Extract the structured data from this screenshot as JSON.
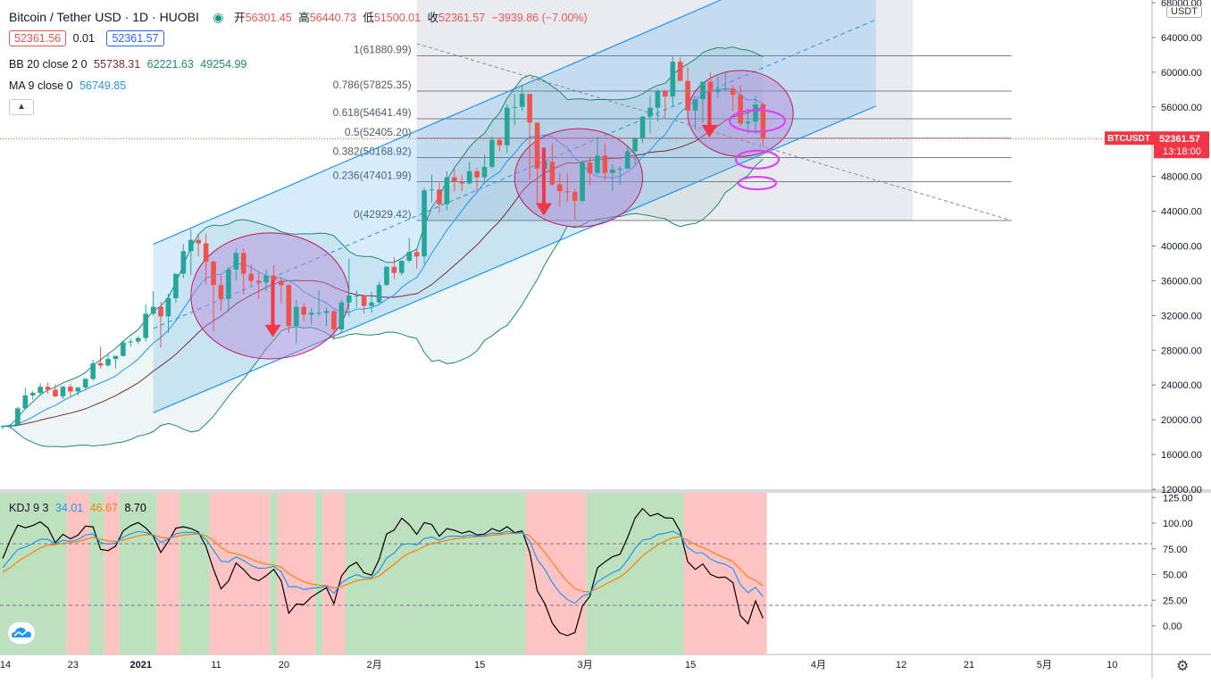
{
  "header": {
    "symbol": "Bitcoin / Tether USD · 1D · HUOBI",
    "open_label": "开",
    "open": "56301.45",
    "high_label": "高",
    "high": "56440.73",
    "low_label": "低",
    "low": "51500.01",
    "close_label": "收",
    "close": "52361.57",
    "change": "−3939.86 (−7.00%)",
    "bid": "52361.56",
    "spread": "0.01",
    "ask": "52361.57",
    "bb_label": "BB 20 close 2 0",
    "bb_basis": "55738.31",
    "bb_upper": "62221.63",
    "bb_lower": "49254.99",
    "ma_label": "MA 9 close 0",
    "ma_value": "56749.85",
    "collapse_icon": "chevron-up-icon"
  },
  "price_axis": {
    "currency": "USDT",
    "labels": [
      "68000.00",
      "64000.00",
      "60000.00",
      "56000.00",
      "52000.00",
      "48000.00",
      "44000.00",
      "40000.00",
      "36000.00",
      "32000.00",
      "28000.00",
      "24000.00",
      "20000.00",
      "16000.00",
      "12000.00"
    ],
    "last_price_label": "52361.57",
    "countdown": "13:18:00",
    "symbol_tag": "BTCUSDT"
  },
  "kdj_axis": {
    "labels": [
      "125.00",
      "100.00",
      "75.00",
      "50.00",
      "25.00",
      "0.00"
    ]
  },
  "time_axis": {
    "labels": [
      "14",
      "23",
      "2021",
      "11",
      "20",
      "2月",
      "15",
      "3月",
      "15",
      "4月",
      "12",
      "21",
      "5月",
      "10"
    ]
  },
  "fib": {
    "labels": [
      "1(61880.99)",
      "0.786(57825.35)",
      "0.618(54641.49)",
      "0.5(52405.20)",
      "0.382(50168.92)",
      "0.236(47401.99)",
      "0(42929.42)"
    ],
    "levels": [
      61880.99,
      57825.35,
      54641.49,
      52405.2,
      50168.92,
      47401.99,
      42929.42
    ]
  },
  "kdj_legend": {
    "label": "KDJ 9 3",
    "k": "34.01",
    "d": "46.67",
    "j": "8.70"
  },
  "colors": {
    "up": "#26a69a",
    "down": "#ef5350",
    "bb_band": "#1f8a70",
    "bb_basis": "#7b2b3a",
    "ma": "#2196f3",
    "k": "#2196f3",
    "d": "#ff7f0e",
    "j": "#000000",
    "channel": "#2196f3",
    "fib_bg": "#e0e3eb",
    "ellipse_fill": "#b48ad6",
    "ring": "#e040fb",
    "arrow": "#f23645"
  },
  "chart_data": {
    "type": "candlestick",
    "interval": "1D",
    "x_axis_start": "2020-12-14",
    "ylim": [
      12000,
      68000
    ],
    "candles": [
      {
        "t": "2020-12-14",
        "o": 19150,
        "h": 19400,
        "l": 18900,
        "c": 19250
      },
      {
        "t": "2020-12-15",
        "o": 19250,
        "h": 19500,
        "l": 19000,
        "c": 19400
      },
      {
        "t": "2020-12-16",
        "o": 19400,
        "h": 21500,
        "l": 19300,
        "c": 21300
      },
      {
        "t": "2020-12-17",
        "o": 21300,
        "h": 23700,
        "l": 21200,
        "c": 22800
      },
      {
        "t": "2020-12-18",
        "o": 22800,
        "h": 23300,
        "l": 22300,
        "c": 23100
      },
      {
        "t": "2020-12-19",
        "o": 23100,
        "h": 24200,
        "l": 22800,
        "c": 23800
      },
      {
        "t": "2020-12-20",
        "o": 23800,
        "h": 24300,
        "l": 23000,
        "c": 23450
      },
      {
        "t": "2020-12-21",
        "o": 23450,
        "h": 24100,
        "l": 22600,
        "c": 22700
      },
      {
        "t": "2020-12-22",
        "o": 22700,
        "h": 23900,
        "l": 22400,
        "c": 23800
      },
      {
        "t": "2020-12-23",
        "o": 23800,
        "h": 24100,
        "l": 22600,
        "c": 23250
      },
      {
        "t": "2020-12-24",
        "o": 23250,
        "h": 23800,
        "l": 22800,
        "c": 23700
      },
      {
        "t": "2020-12-25",
        "o": 23700,
        "h": 24800,
        "l": 23400,
        "c": 24700
      },
      {
        "t": "2020-12-26",
        "o": 24700,
        "h": 26900,
        "l": 24500,
        "c": 26500
      },
      {
        "t": "2020-12-27",
        "o": 26500,
        "h": 28400,
        "l": 25900,
        "c": 26250
      },
      {
        "t": "2020-12-28",
        "o": 26250,
        "h": 27500,
        "l": 26100,
        "c": 27000
      },
      {
        "t": "2020-12-29",
        "o": 27000,
        "h": 27300,
        "l": 25900,
        "c": 27350
      },
      {
        "t": "2020-12-30",
        "o": 27350,
        "h": 29000,
        "l": 27300,
        "c": 28900
      },
      {
        "t": "2020-12-31",
        "o": 28900,
        "h": 29300,
        "l": 28400,
        "c": 29000
      },
      {
        "t": "2021-01-01",
        "o": 29000,
        "h": 29600,
        "l": 28700,
        "c": 29400
      },
      {
        "t": "2021-01-02",
        "o": 29400,
        "h": 33300,
        "l": 29000,
        "c": 32200
      },
      {
        "t": "2021-01-03",
        "o": 32200,
        "h": 34800,
        "l": 32000,
        "c": 33000
      },
      {
        "t": "2021-01-04",
        "o": 33000,
        "h": 33600,
        "l": 28300,
        "c": 31900
      },
      {
        "t": "2021-01-05",
        "o": 31900,
        "h": 34500,
        "l": 30000,
        "c": 34000
      },
      {
        "t": "2021-01-06",
        "o": 34000,
        "h": 36800,
        "l": 33500,
        "c": 36800
      },
      {
        "t": "2021-01-07",
        "o": 36800,
        "h": 40200,
        "l": 36300,
        "c": 39400
      },
      {
        "t": "2021-01-08",
        "o": 39400,
        "h": 41900,
        "l": 36600,
        "c": 40700
      },
      {
        "t": "2021-01-09",
        "o": 40700,
        "h": 41300,
        "l": 38800,
        "c": 40300
      },
      {
        "t": "2021-01-10",
        "o": 40300,
        "h": 41400,
        "l": 35600,
        "c": 38200
      },
      {
        "t": "2021-01-11",
        "o": 38200,
        "h": 38300,
        "l": 30200,
        "c": 35500
      },
      {
        "t": "2021-01-12",
        "o": 35500,
        "h": 36600,
        "l": 32500,
        "c": 33900
      },
      {
        "t": "2021-01-13",
        "o": 33900,
        "h": 37600,
        "l": 32400,
        "c": 37300
      },
      {
        "t": "2021-01-14",
        "o": 37300,
        "h": 39700,
        "l": 36000,
        "c": 39200
      },
      {
        "t": "2021-01-15",
        "o": 39200,
        "h": 39700,
        "l": 34400,
        "c": 36800
      },
      {
        "t": "2021-01-16",
        "o": 36800,
        "h": 37900,
        "l": 35400,
        "c": 36000
      },
      {
        "t": "2021-01-17",
        "o": 36000,
        "h": 36900,
        "l": 33900,
        "c": 35800
      },
      {
        "t": "2021-01-18",
        "o": 35800,
        "h": 37300,
        "l": 34800,
        "c": 36600
      },
      {
        "t": "2021-01-19",
        "o": 36600,
        "h": 37800,
        "l": 35800,
        "c": 36000
      },
      {
        "t": "2021-01-20",
        "o": 36000,
        "h": 36400,
        "l": 33400,
        "c": 35500
      },
      {
        "t": "2021-01-21",
        "o": 35500,
        "h": 35600,
        "l": 30000,
        "c": 30800
      },
      {
        "t": "2021-01-22",
        "o": 30800,
        "h": 33800,
        "l": 28800,
        "c": 33000
      },
      {
        "t": "2021-01-23",
        "o": 33000,
        "h": 33400,
        "l": 31400,
        "c": 32100
      },
      {
        "t": "2021-01-24",
        "o": 32100,
        "h": 32900,
        "l": 31000,
        "c": 32300
      },
      {
        "t": "2021-01-25",
        "o": 32300,
        "h": 34900,
        "l": 31900,
        "c": 32300
      },
      {
        "t": "2021-01-26",
        "o": 32300,
        "h": 32900,
        "l": 30800,
        "c": 32500
      },
      {
        "t": "2021-01-27",
        "o": 32500,
        "h": 32600,
        "l": 29200,
        "c": 30400
      },
      {
        "t": "2021-01-28",
        "o": 30400,
        "h": 33800,
        "l": 29900,
        "c": 33500
      },
      {
        "t": "2021-01-29",
        "o": 33500,
        "h": 38500,
        "l": 31900,
        "c": 34300
      },
      {
        "t": "2021-01-30",
        "o": 34300,
        "h": 34900,
        "l": 32900,
        "c": 34300
      },
      {
        "t": "2021-01-31",
        "o": 34300,
        "h": 34400,
        "l": 32200,
        "c": 33100
      },
      {
        "t": "2021-02-01",
        "o": 33100,
        "h": 34700,
        "l": 32300,
        "c": 33500
      },
      {
        "t": "2021-02-02",
        "o": 33500,
        "h": 35900,
        "l": 33400,
        "c": 35500
      },
      {
        "t": "2021-02-03",
        "o": 35500,
        "h": 37700,
        "l": 35400,
        "c": 37600
      },
      {
        "t": "2021-02-04",
        "o": 37600,
        "h": 38700,
        "l": 36200,
        "c": 36900
      },
      {
        "t": "2021-02-05",
        "o": 36900,
        "h": 38300,
        "l": 36600,
        "c": 38300
      },
      {
        "t": "2021-02-06",
        "o": 38300,
        "h": 40900,
        "l": 38100,
        "c": 39300
      },
      {
        "t": "2021-02-07",
        "o": 39300,
        "h": 39700,
        "l": 37400,
        "c": 38800
      },
      {
        "t": "2021-02-08",
        "o": 38800,
        "h": 46700,
        "l": 37900,
        "c": 46400
      },
      {
        "t": "2021-02-09",
        "o": 46400,
        "h": 48200,
        "l": 45000,
        "c": 46500
      },
      {
        "t": "2021-02-10",
        "o": 46500,
        "h": 47300,
        "l": 43800,
        "c": 44800
      },
      {
        "t": "2021-02-11",
        "o": 44800,
        "h": 48600,
        "l": 44100,
        "c": 47900
      },
      {
        "t": "2021-02-12",
        "o": 47900,
        "h": 48900,
        "l": 46300,
        "c": 47400
      },
      {
        "t": "2021-02-13",
        "o": 47400,
        "h": 48200,
        "l": 46300,
        "c": 47200
      },
      {
        "t": "2021-02-14",
        "o": 47200,
        "h": 49700,
        "l": 47100,
        "c": 48600
      },
      {
        "t": "2021-02-15",
        "o": 48600,
        "h": 49000,
        "l": 46300,
        "c": 47900
      },
      {
        "t": "2021-02-16",
        "o": 47900,
        "h": 50500,
        "l": 47100,
        "c": 49100
      },
      {
        "t": "2021-02-17",
        "o": 49100,
        "h": 52600,
        "l": 48900,
        "c": 52200
      },
      {
        "t": "2021-02-18",
        "o": 52200,
        "h": 52500,
        "l": 50900,
        "c": 51600
      },
      {
        "t": "2021-02-19",
        "o": 51600,
        "h": 56300,
        "l": 50700,
        "c": 55900
      },
      {
        "t": "2021-02-20",
        "o": 55900,
        "h": 57500,
        "l": 53900,
        "c": 56000
      },
      {
        "t": "2021-02-21",
        "o": 56000,
        "h": 58400,
        "l": 55500,
        "c": 57500
      },
      {
        "t": "2021-02-22",
        "o": 57500,
        "h": 57500,
        "l": 47600,
        "c": 54200
      },
      {
        "t": "2021-02-23",
        "o": 54200,
        "h": 54200,
        "l": 44900,
        "c": 48900
      },
      {
        "t": "2021-02-24",
        "o": 48900,
        "h": 51300,
        "l": 47100,
        "c": 49700
      },
      {
        "t": "2021-02-25",
        "o": 49700,
        "h": 51800,
        "l": 46900,
        "c": 47100
      },
      {
        "t": "2021-02-26",
        "o": 47100,
        "h": 48400,
        "l": 44500,
        "c": 46300
      },
      {
        "t": "2021-02-27",
        "o": 46300,
        "h": 48300,
        "l": 45100,
        "c": 46200
      },
      {
        "t": "2021-02-28",
        "o": 46200,
        "h": 46600,
        "l": 43000,
        "c": 45200
      },
      {
        "t": "2021-03-01",
        "o": 45200,
        "h": 49800,
        "l": 45000,
        "c": 49600
      },
      {
        "t": "2021-03-02",
        "o": 49600,
        "h": 50200,
        "l": 47000,
        "c": 48400
      },
      {
        "t": "2021-03-03",
        "o": 48400,
        "h": 52600,
        "l": 48100,
        "c": 50400
      },
      {
        "t": "2021-03-04",
        "o": 50400,
        "h": 51800,
        "l": 47600,
        "c": 48400
      },
      {
        "t": "2021-03-05",
        "o": 48400,
        "h": 49400,
        "l": 46300,
        "c": 48800
      },
      {
        "t": "2021-03-06",
        "o": 48800,
        "h": 49200,
        "l": 47100,
        "c": 48900
      },
      {
        "t": "2021-03-07",
        "o": 48900,
        "h": 51400,
        "l": 48900,
        "c": 50900
      },
      {
        "t": "2021-03-08",
        "o": 50900,
        "h": 52400,
        "l": 49300,
        "c": 52400
      },
      {
        "t": "2021-03-09",
        "o": 52400,
        "h": 54900,
        "l": 51800,
        "c": 54900
      },
      {
        "t": "2021-03-10",
        "o": 54900,
        "h": 57300,
        "l": 53000,
        "c": 55900
      },
      {
        "t": "2021-03-11",
        "o": 55900,
        "h": 58100,
        "l": 54300,
        "c": 57800
      },
      {
        "t": "2021-03-12",
        "o": 57800,
        "h": 58000,
        "l": 54900,
        "c": 57200
      },
      {
        "t": "2021-03-13",
        "o": 57200,
        "h": 61800,
        "l": 56100,
        "c": 61200
      },
      {
        "t": "2021-03-14",
        "o": 61200,
        "h": 61700,
        "l": 59000,
        "c": 59000
      },
      {
        "t": "2021-03-15",
        "o": 59000,
        "h": 60600,
        "l": 54600,
        "c": 55600
      },
      {
        "t": "2021-03-16",
        "o": 55600,
        "h": 56900,
        "l": 53400,
        "c": 56900
      },
      {
        "t": "2021-03-17",
        "o": 56900,
        "h": 58900,
        "l": 54200,
        "c": 58900
      },
      {
        "t": "2021-03-18",
        "o": 58900,
        "h": 60000,
        "l": 57100,
        "c": 57700
      },
      {
        "t": "2021-03-19",
        "o": 57700,
        "h": 59500,
        "l": 57000,
        "c": 58000
      },
      {
        "t": "2021-03-20",
        "o": 58000,
        "h": 59900,
        "l": 57800,
        "c": 58100
      },
      {
        "t": "2021-03-21",
        "o": 58100,
        "h": 58500,
        "l": 55500,
        "c": 57400
      },
      {
        "t": "2021-03-22",
        "o": 57400,
        "h": 58500,
        "l": 53800,
        "c": 54100
      },
      {
        "t": "2021-03-23",
        "o": 54100,
        "h": 55800,
        "l": 53000,
        "c": 54300
      },
      {
        "t": "2021-03-24",
        "o": 54300,
        "h": 57200,
        "l": 52900,
        "c": 56300
      },
      {
        "t": "2021-03-25",
        "o": 56301.45,
        "h": 56440.73,
        "l": 51500.01,
        "c": 52361.57
      }
    ],
    "indicators": {
      "bollinger": {
        "period": 20,
        "mult": 2,
        "basis": 55738.31,
        "upper": 62221.63,
        "lower": 49254.99
      },
      "ma": {
        "period": 9,
        "value": 56749.85
      },
      "kdj": {
        "params": "9 3",
        "k": 34.01,
        "d": 46.67,
        "j": 8.7
      }
    },
    "annotations": {
      "fib_retracement": {
        "from": "2021-02-07",
        "to": "2021-04-27",
        "high": 61880.99,
        "low": 42929.42
      },
      "trend_channel": {
        "start": {
          "t": "2021-01-03",
          "p": [
            20800,
            40200
          ]
        },
        "end": {
          "t": "2021-04-09",
          "p": [
            56100,
            76000
          ]
        }
      },
      "ellipses": [
        {
          "from": "2021-01-08",
          "to": "2021-01-29",
          "p_top": 41500,
          "p_bottom": 27000
        },
        {
          "from": "2021-02-20",
          "to": "2021-03-09",
          "p_top": 53500,
          "p_bottom": 42200
        },
        {
          "from": "2021-03-15",
          "to": "2021-03-29",
          "p_top": 60200,
          "p_bottom": 50300
        }
      ],
      "rings": [
        {
          "t": "2021-03-24",
          "p": 54400
        },
        {
          "t": "2021-03-24",
          "p": 49950
        },
        {
          "t": "2021-03-24",
          "p": 47240
        }
      ],
      "arrows": [
        {
          "t": "2021-01-19",
          "from": 36100,
          "to": 29500
        },
        {
          "t": "2021-02-24",
          "from": 51300,
          "to": 43500
        },
        {
          "t": "2021-03-18",
          "from": 57700,
          "to": 52500
        }
      ]
    },
    "kdj_regions": [
      {
        "from": "2020-12-14",
        "to": "2020-12-22",
        "state": "bull"
      },
      {
        "from": "2020-12-23",
        "to": "2020-12-25",
        "state": "bear"
      },
      {
        "from": "2020-12-26",
        "to": "2020-12-27",
        "state": "bull"
      },
      {
        "from": "2020-12-28",
        "to": "2020-12-29",
        "state": "bear"
      },
      {
        "from": "2020-12-30",
        "to": "2021-01-03",
        "state": "bull"
      },
      {
        "from": "2021-01-04",
        "to": "2021-01-06",
        "state": "bear"
      },
      {
        "from": "2021-01-07",
        "to": "2021-01-10",
        "state": "bull"
      },
      {
        "from": "2021-01-11",
        "to": "2021-01-18",
        "state": "bear"
      },
      {
        "from": "2021-01-19",
        "to": "2021-01-19",
        "state": "bull"
      },
      {
        "from": "2021-01-20",
        "to": "2021-01-24",
        "state": "bear"
      },
      {
        "from": "2021-01-25",
        "to": "2021-01-25",
        "state": "bull"
      },
      {
        "from": "2021-01-26",
        "to": "2021-01-28",
        "state": "bear"
      },
      {
        "from": "2021-01-29",
        "to": "2021-02-21",
        "state": "bull"
      },
      {
        "from": "2021-02-22",
        "to": "2021-03-01",
        "state": "bear"
      },
      {
        "from": "2021-03-02",
        "to": "2021-03-14",
        "state": "bull"
      },
      {
        "from": "2021-03-15",
        "to": "2021-03-25",
        "state": "bear"
      }
    ]
  }
}
